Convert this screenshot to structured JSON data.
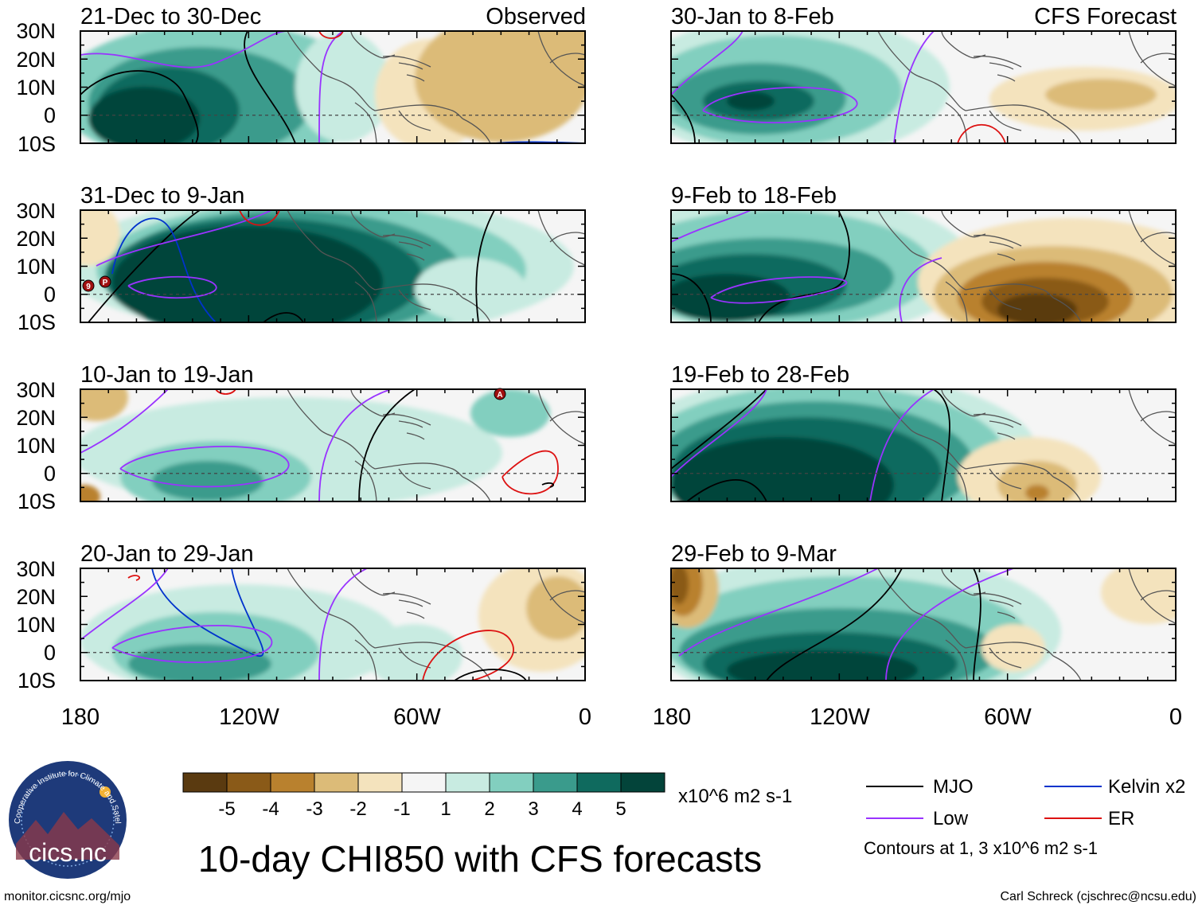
{
  "title": "10-day CHI850 with CFS forecasts",
  "left_tag": "Observed",
  "right_tag": "CFS Forecast",
  "panels": [
    {
      "title": "21-Dec to 30-Dec"
    },
    {
      "title": "31-Dec to 9-Jan"
    },
    {
      "title": "10-Jan to 19-Jan"
    },
    {
      "title": "20-Jan to 29-Jan"
    },
    {
      "title": "30-Jan to 8-Feb"
    },
    {
      "title": "9-Feb to 18-Feb"
    },
    {
      "title": "19-Feb to 28-Feb"
    },
    {
      "title": "29-Feb to 9-Mar"
    }
  ],
  "lat_labels": [
    "30N",
    "20N",
    "10N",
    "0",
    "10S"
  ],
  "lon_labels": [
    "180",
    "120W",
    "60W",
    "0"
  ],
  "colorbar": {
    "ticks": [
      "-5",
      "-4",
      "-3",
      "-2",
      "-1",
      "1",
      "2",
      "3",
      "4",
      "5"
    ],
    "colors": [
      "#5a3a10",
      "#8a5a18",
      "#b9812e",
      "#dcbb78",
      "#f4e3bd",
      "#f5f5f5",
      "#c8ebe1",
      "#82cfbf",
      "#3a9b8c",
      "#0f6a5e",
      "#03443a"
    ],
    "unit": "x10^6 m2 s-1"
  },
  "legend": {
    "items": [
      {
        "label": "MJO",
        "color": "#000000"
      },
      {
        "label": "Kelvin x2",
        "color": "#0033cc"
      },
      {
        "label": "Low",
        "color": "#9933ff"
      },
      {
        "label": "ER",
        "color": "#dd1111"
      }
    ],
    "note": "Contours at 1, 3 x10^6 m2 s-1"
  },
  "logo": {
    "text": "cics.nc",
    "ring_text": "Cooperative Institute for Climate and Satellites"
  },
  "footer": {
    "left": "monitor.cicsnc.org/mjo",
    "right": "Carl Schreck (cjschrec@ncsu.edu)"
  },
  "storm_markers": [
    {
      "panel": 1,
      "letters": [
        "9",
        "P"
      ]
    },
    {
      "panel": 2,
      "letters": [
        "A"
      ]
    }
  ]
}
